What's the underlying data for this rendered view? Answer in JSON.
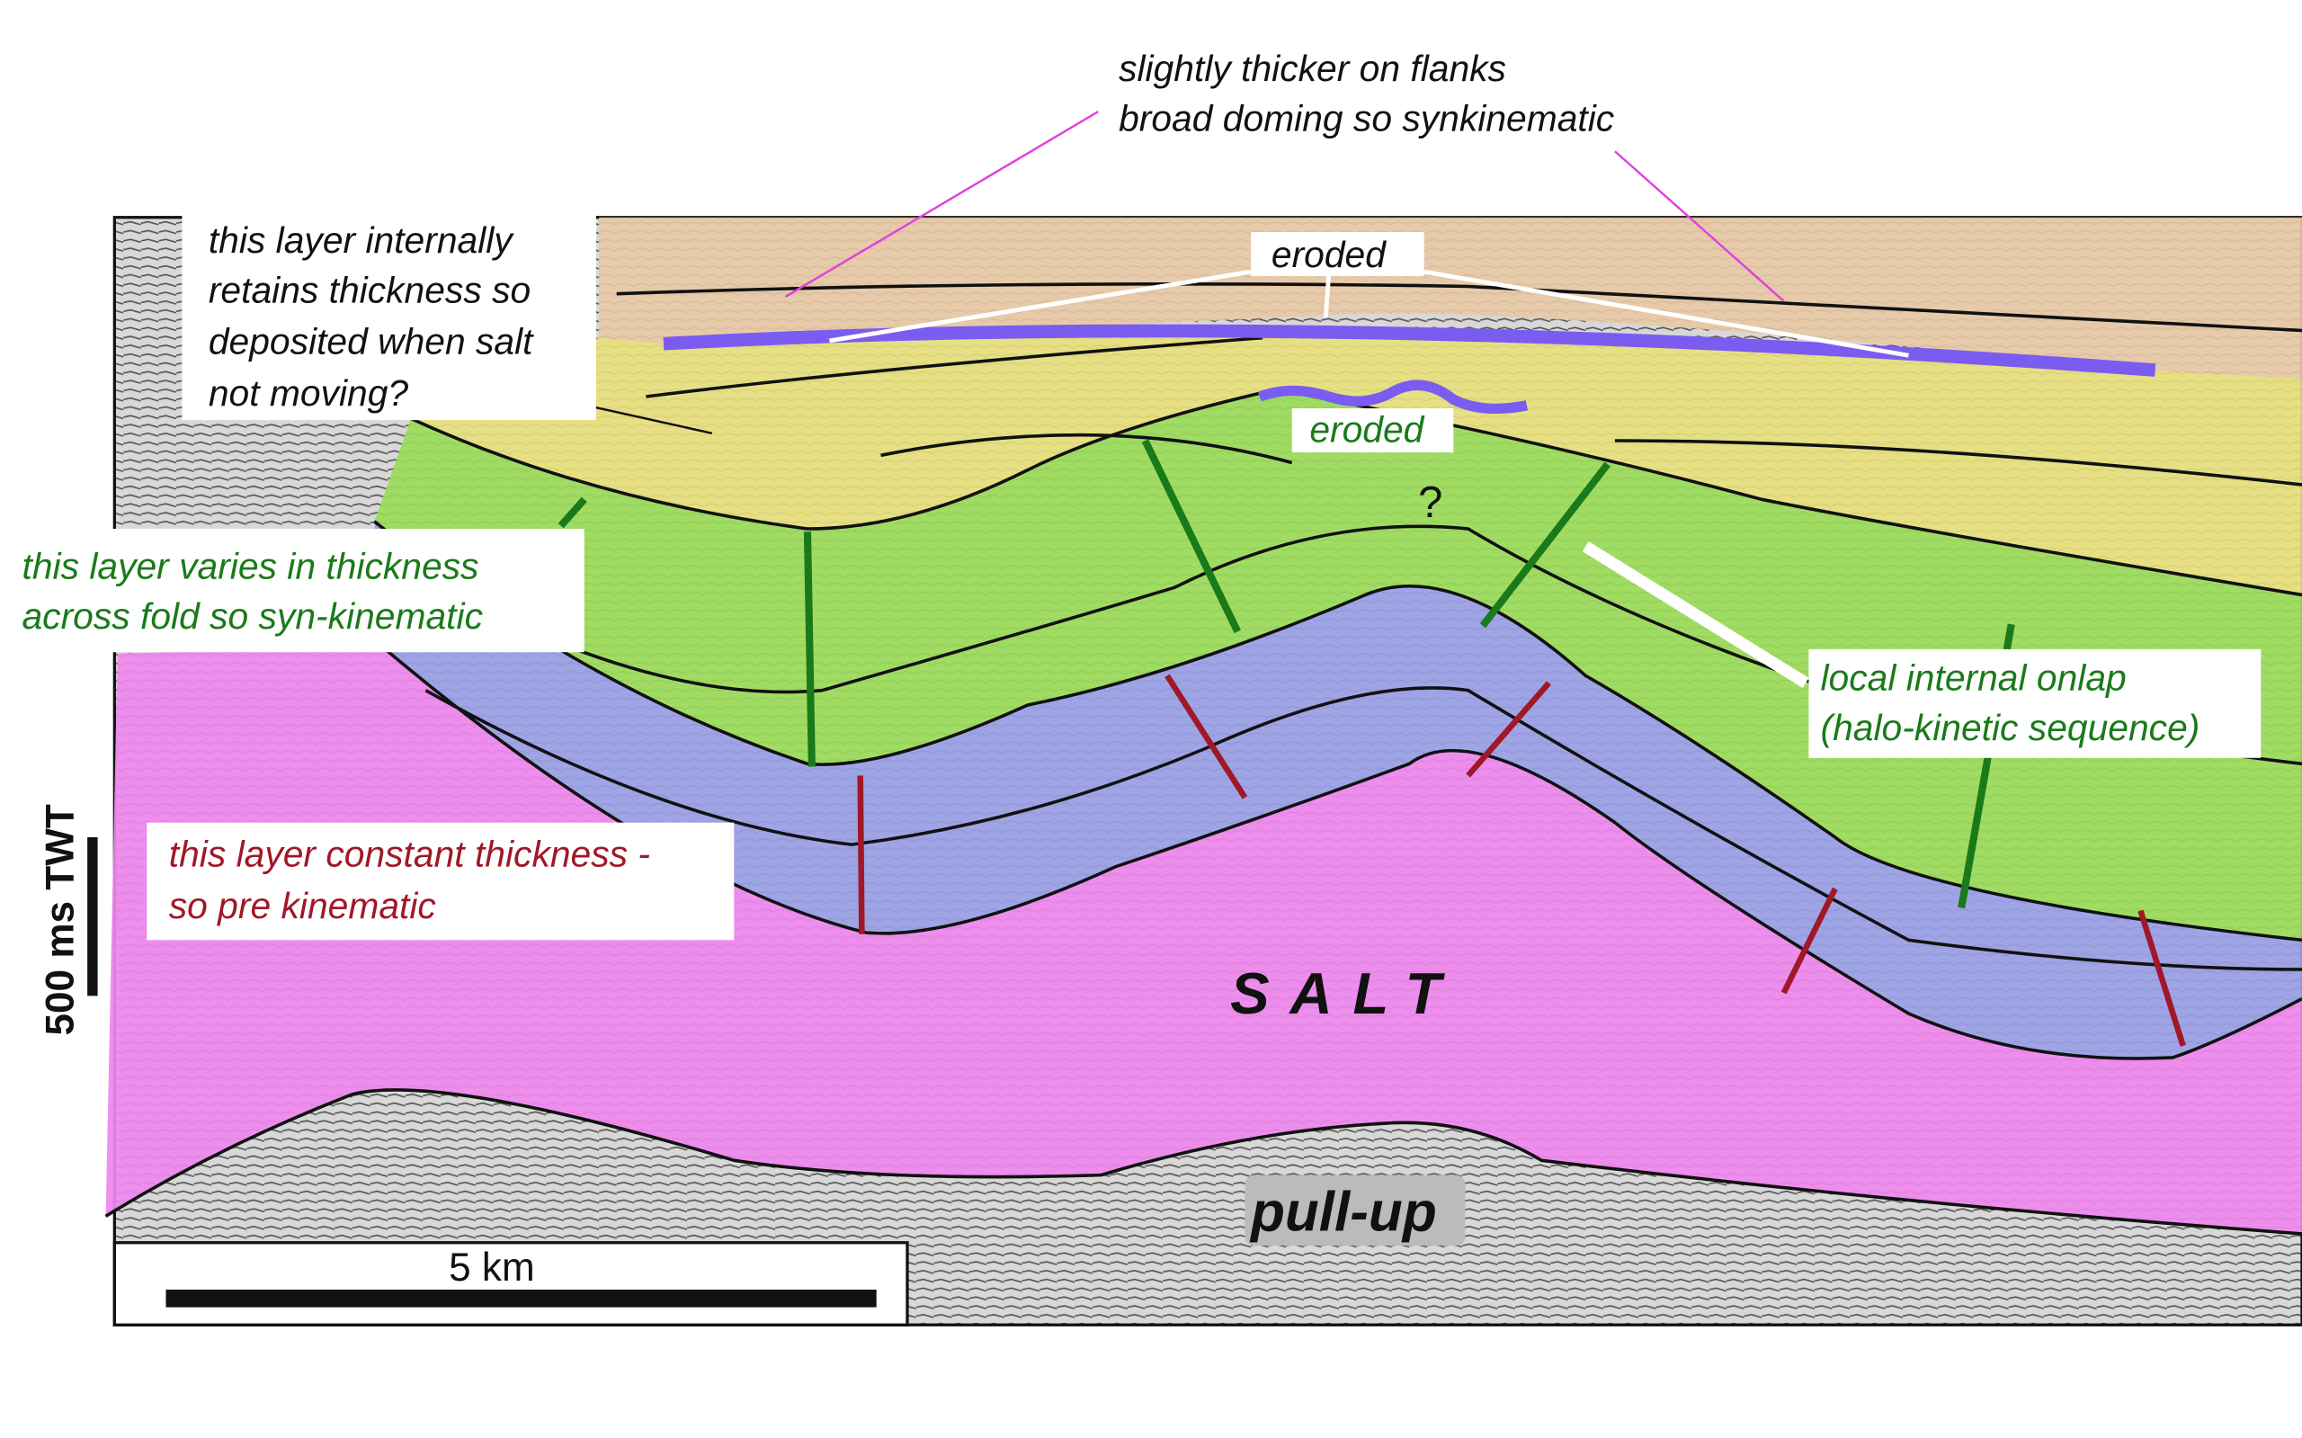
{
  "annotations": {
    "top_note": [
      "slightly thicker on flanks",
      "broad doming so synkinematic"
    ],
    "upper_layer_note": [
      "this layer internally",
      "retains thickness so",
      "deposited when salt",
      "not moving?"
    ],
    "eroded_top": "eroded",
    "eroded_mid": "eroded",
    "question": "?",
    "green_note": [
      "this layer varies in thickness",
      "across fold so syn-kinematic"
    ],
    "onlap_note": [
      "local internal onlap",
      "(halo-kinetic sequence)"
    ],
    "red_note": [
      "this layer constant thickness -",
      "so pre kinematic"
    ],
    "salt": "SALT",
    "pull_up": "pull-up",
    "scale_vertical": "500 ms TWT",
    "scale_horizontal": "5 km"
  }
}
